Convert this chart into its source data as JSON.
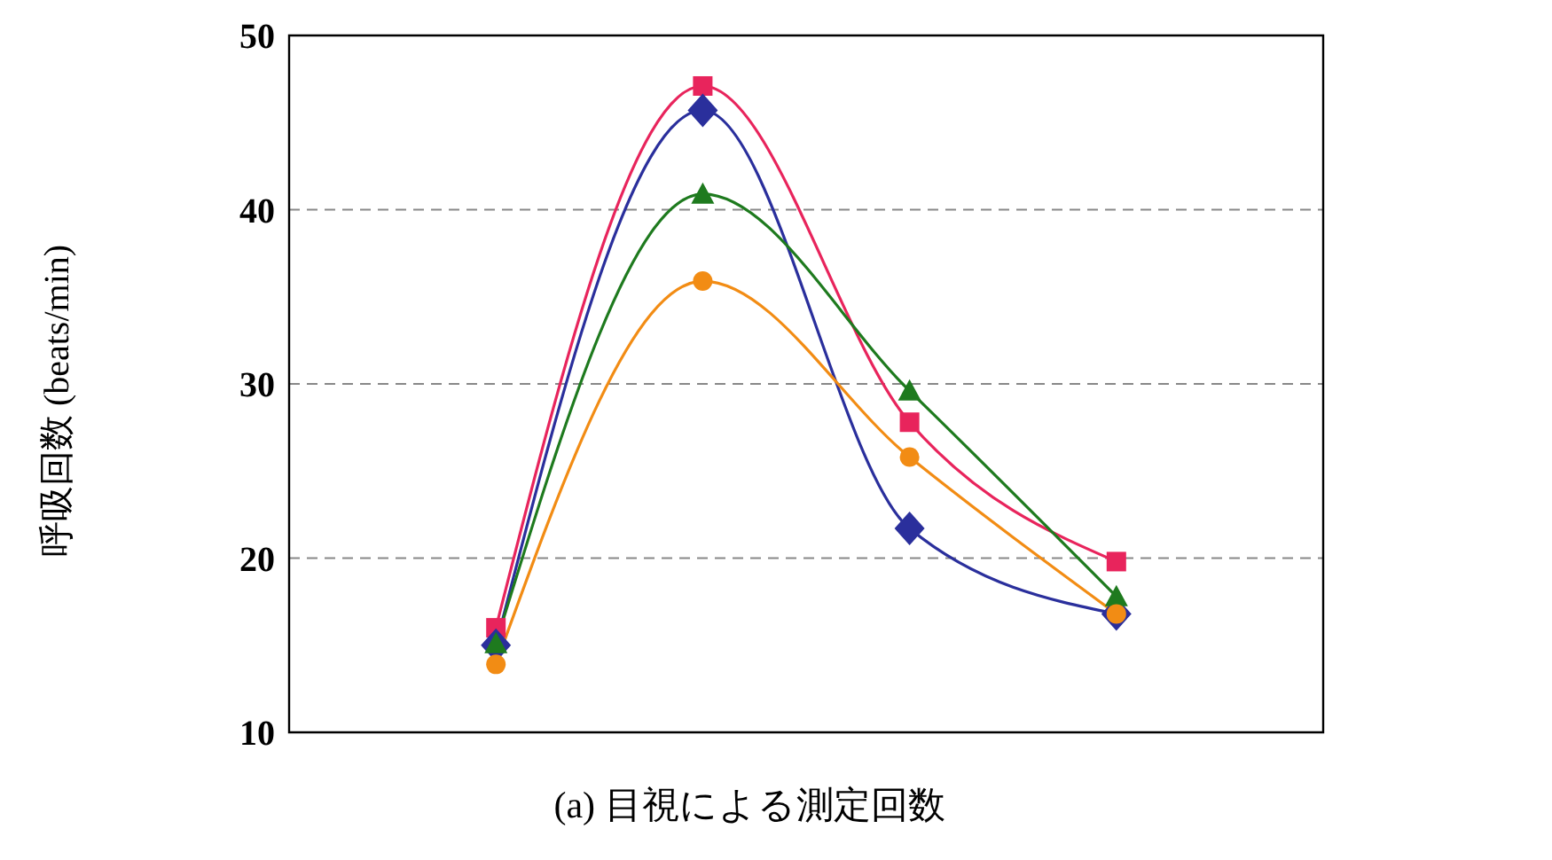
{
  "chart_data": {
    "type": "line",
    "xlabel": "(a) 目視による測定回数",
    "ylabel": "呼吸回数 (beats/min)",
    "categories": [
      null,
      null,
      null,
      null
    ],
    "ylim": [
      10,
      50
    ],
    "yticks": [
      10,
      20,
      30,
      40,
      50
    ],
    "grid": "y",
    "tick_labels": "y",
    "line_style": "solid",
    "series": [
      {
        "color": "#e8245c",
        "marker": "square",
        "values": [
          16,
          47.1,
          27.8,
          19.8
        ]
      },
      {
        "color": "#2a2f9c",
        "marker": "diamond",
        "values": [
          15,
          45.7,
          21.7,
          16.8
        ]
      },
      {
        "color": "#1e7a1e",
        "marker": "triangle",
        "values": [
          15.1,
          40.9,
          29.6,
          17.8
        ]
      },
      {
        "color": "#f28c14",
        "marker": "circle",
        "values": [
          13.9,
          35.9,
          25.8,
          16.8
        ]
      }
    ]
  }
}
